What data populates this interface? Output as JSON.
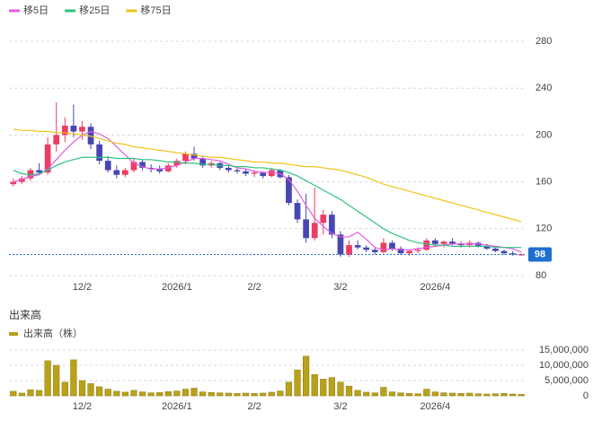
{
  "chart_data": [
    {
      "type": "candlestick",
      "categories": [
        null,
        null,
        null,
        null,
        null,
        null,
        null,
        null,
        "12/2",
        null,
        null,
        null,
        null,
        null,
        null,
        null,
        null,
        null,
        null,
        "2026/1",
        null,
        null,
        null,
        null,
        null,
        null,
        null,
        null,
        "2/2",
        null,
        null,
        null,
        null,
        null,
        null,
        null,
        null,
        null,
        "3/2",
        null,
        null,
        null,
        null,
        null,
        null,
        null,
        null,
        null,
        null,
        "2026/4",
        null,
        null,
        null,
        null,
        null,
        null,
        null,
        null,
        null,
        null
      ],
      "open": [
        158,
        160,
        163,
        170,
        168,
        192,
        200,
        208,
        203,
        207,
        192,
        178,
        170,
        166,
        170,
        177,
        172,
        171,
        169,
        174,
        178,
        184,
        180,
        174,
        176,
        172,
        170,
        169,
        167,
        168,
        165,
        170,
        164,
        142,
        128,
        112,
        125,
        132,
        115,
        98,
        106,
        104,
        102,
        100,
        108,
        103,
        99,
        101,
        102,
        110,
        107,
        109,
        107,
        106,
        108,
        105,
        103,
        101,
        99,
        98
      ],
      "high": [
        163,
        165,
        172,
        176,
        198,
        228,
        215,
        226,
        212,
        210,
        195,
        182,
        174,
        172,
        180,
        179,
        175,
        174,
        176,
        180,
        186,
        190,
        182,
        178,
        177,
        174,
        172,
        171,
        170,
        169,
        172,
        171,
        166,
        145,
        150,
        155,
        136,
        135,
        118,
        110,
        110,
        106,
        104,
        112,
        110,
        105,
        102,
        104,
        112,
        112,
        110,
        112,
        109,
        110,
        109,
        107,
        104,
        102,
        101,
        99
      ],
      "low": [
        156,
        158,
        161,
        166,
        166,
        186,
        194,
        198,
        196,
        188,
        175,
        168,
        163,
        164,
        168,
        170,
        168,
        167,
        168,
        172,
        175,
        178,
        172,
        172,
        170,
        168,
        167,
        165,
        164,
        163,
        164,
        163,
        140,
        125,
        108,
        110,
        115,
        112,
        96,
        96,
        102,
        100,
        98,
        99,
        101,
        98,
        97,
        99,
        101,
        105,
        104,
        106,
        104,
        104,
        104,
        102,
        100,
        98,
        97,
        97
      ],
      "close": [
        160,
        163,
        170,
        168,
        192,
        200,
        208,
        203,
        207,
        192,
        178,
        170,
        166,
        170,
        177,
        172,
        171,
        169,
        174,
        178,
        184,
        180,
        174,
        176,
        172,
        170,
        169,
        167,
        168,
        165,
        170,
        164,
        142,
        128,
        112,
        125,
        132,
        115,
        98,
        106,
        104,
        102,
        100,
        108,
        103,
        99,
        101,
        102,
        110,
        107,
        109,
        107,
        106,
        108,
        105,
        103,
        101,
        99,
        98,
        98
      ],
      "up_color": "#ec3d63",
      "down_color": "#4646b4",
      "series": [
        {
          "name": "移5日",
          "color": "#e15ce0",
          "values": [
            160,
            162,
            165,
            166,
            171,
            179,
            187,
            194,
            200,
            203,
            201,
            197,
            190,
            183,
            176,
            173,
            171,
            171,
            172,
            174,
            177,
            180,
            180,
            179,
            178,
            175,
            172,
            171,
            169,
            168,
            168,
            167,
            162,
            152,
            140,
            129,
            122,
            116,
            113,
            113,
            117,
            111,
            104,
            102,
            103,
            102,
            102,
            103,
            104,
            105,
            106,
            107,
            107,
            107,
            107,
            106,
            105,
            104,
            103,
            100
          ]
        },
        {
          "name": "移25日",
          "color": "#2fc27a",
          "values": [
            170,
            167,
            166,
            167,
            170,
            174,
            177,
            179,
            181,
            181,
            181,
            181,
            180,
            180,
            180,
            179,
            179,
            178,
            177,
            177,
            176,
            176,
            175,
            175,
            174,
            174,
            173,
            173,
            172,
            172,
            171,
            170,
            168,
            165,
            161,
            157,
            153,
            149,
            145,
            140,
            135,
            130,
            125,
            120,
            116,
            113,
            110,
            108,
            107,
            106,
            106,
            105,
            105,
            105,
            105,
            105,
            104,
            104,
            104,
            104
          ]
        },
        {
          "name": "移75日",
          "color": "#f0c419",
          "values": [
            205,
            204,
            204,
            203,
            203,
            202,
            202,
            201,
            200,
            199,
            197,
            195,
            193,
            192,
            190,
            189,
            188,
            187,
            186,
            185,
            184,
            183,
            182,
            181,
            181,
            180,
            179,
            178,
            177,
            177,
            176,
            176,
            175,
            174,
            173,
            173,
            172,
            171,
            170,
            168,
            166,
            164,
            161,
            158,
            156,
            154,
            152,
            150,
            148,
            146,
            144,
            142,
            140,
            138,
            136,
            134,
            132,
            130,
            128,
            126
          ]
        }
      ],
      "ylim": [
        80,
        290
      ],
      "yticks": [
        80,
        120,
        160,
        200,
        240,
        280
      ],
      "grid": true,
      "last_value": 98,
      "last_color": "#1e6fd0"
    },
    {
      "type": "bar",
      "title": "出来高",
      "series": [
        {
          "name": "出来高（株）",
          "color": "#b9a21a",
          "values": [
            1500000,
            900000,
            2000000,
            1800000,
            11500000,
            10000000,
            4500000,
            11800000,
            5000000,
            4000000,
            3000000,
            2200000,
            1500000,
            1200000,
            1800000,
            1300000,
            1000000,
            1100000,
            1400000,
            1600000,
            2200000,
            2500000,
            1300000,
            1100000,
            1000000,
            900000,
            800000,
            900000,
            800000,
            900000,
            1200000,
            1600000,
            4500000,
            8500000,
            13000000,
            7000000,
            5500000,
            6000000,
            4500000,
            3200000,
            1800000,
            1200000,
            1000000,
            2800000,
            1300000,
            1000000,
            800000,
            700000,
            2200000,
            1300000,
            1000000,
            900000,
            800000,
            900000,
            700000,
            600000,
            700000,
            800000,
            600000,
            500000
          ]
        }
      ],
      "ylim": [
        0,
        15000000
      ],
      "yticks": [
        {
          "value": 0,
          "label": "0"
        },
        {
          "value": 5000000,
          "label": "5,000,000"
        },
        {
          "value": 10000000,
          "label": "10,000,000"
        },
        {
          "value": 15000000,
          "label": "15,000,000"
        }
      ],
      "grid": true
    }
  ]
}
